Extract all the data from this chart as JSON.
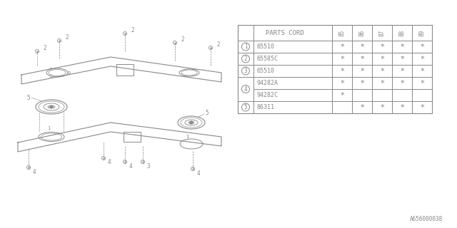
{
  "bg_color": "#ffffff",
  "line_color": "#aaaaaa",
  "diagram_color": "#888888",
  "table": {
    "header": "PARTS CORD",
    "years": [
      "85",
      "86",
      "87",
      "88",
      "89"
    ],
    "row_defs": [
      {
        "num": "1",
        "part": "65510",
        "marks": [
          true,
          true,
          true,
          true,
          true
        ],
        "span": 1
      },
      {
        "num": "2",
        "part": "65585C",
        "marks": [
          true,
          true,
          true,
          true,
          true
        ],
        "span": 1
      },
      {
        "num": "3",
        "part": "65510",
        "marks": [
          true,
          true,
          true,
          true,
          true
        ],
        "span": 1
      },
      {
        "num": "4",
        "part": "94282A",
        "marks": [
          true,
          true,
          true,
          true,
          true
        ],
        "span": 2,
        "part2": "94282C",
        "marks2": [
          true,
          false,
          false,
          false,
          false
        ]
      },
      {
        "num": "5",
        "part": "86311",
        "marks": [
          false,
          true,
          true,
          true,
          true
        ],
        "span": 1
      }
    ]
  },
  "footer_text": "A656000038",
  "label_font_size": 6.5,
  "table_font_size": 6.0
}
